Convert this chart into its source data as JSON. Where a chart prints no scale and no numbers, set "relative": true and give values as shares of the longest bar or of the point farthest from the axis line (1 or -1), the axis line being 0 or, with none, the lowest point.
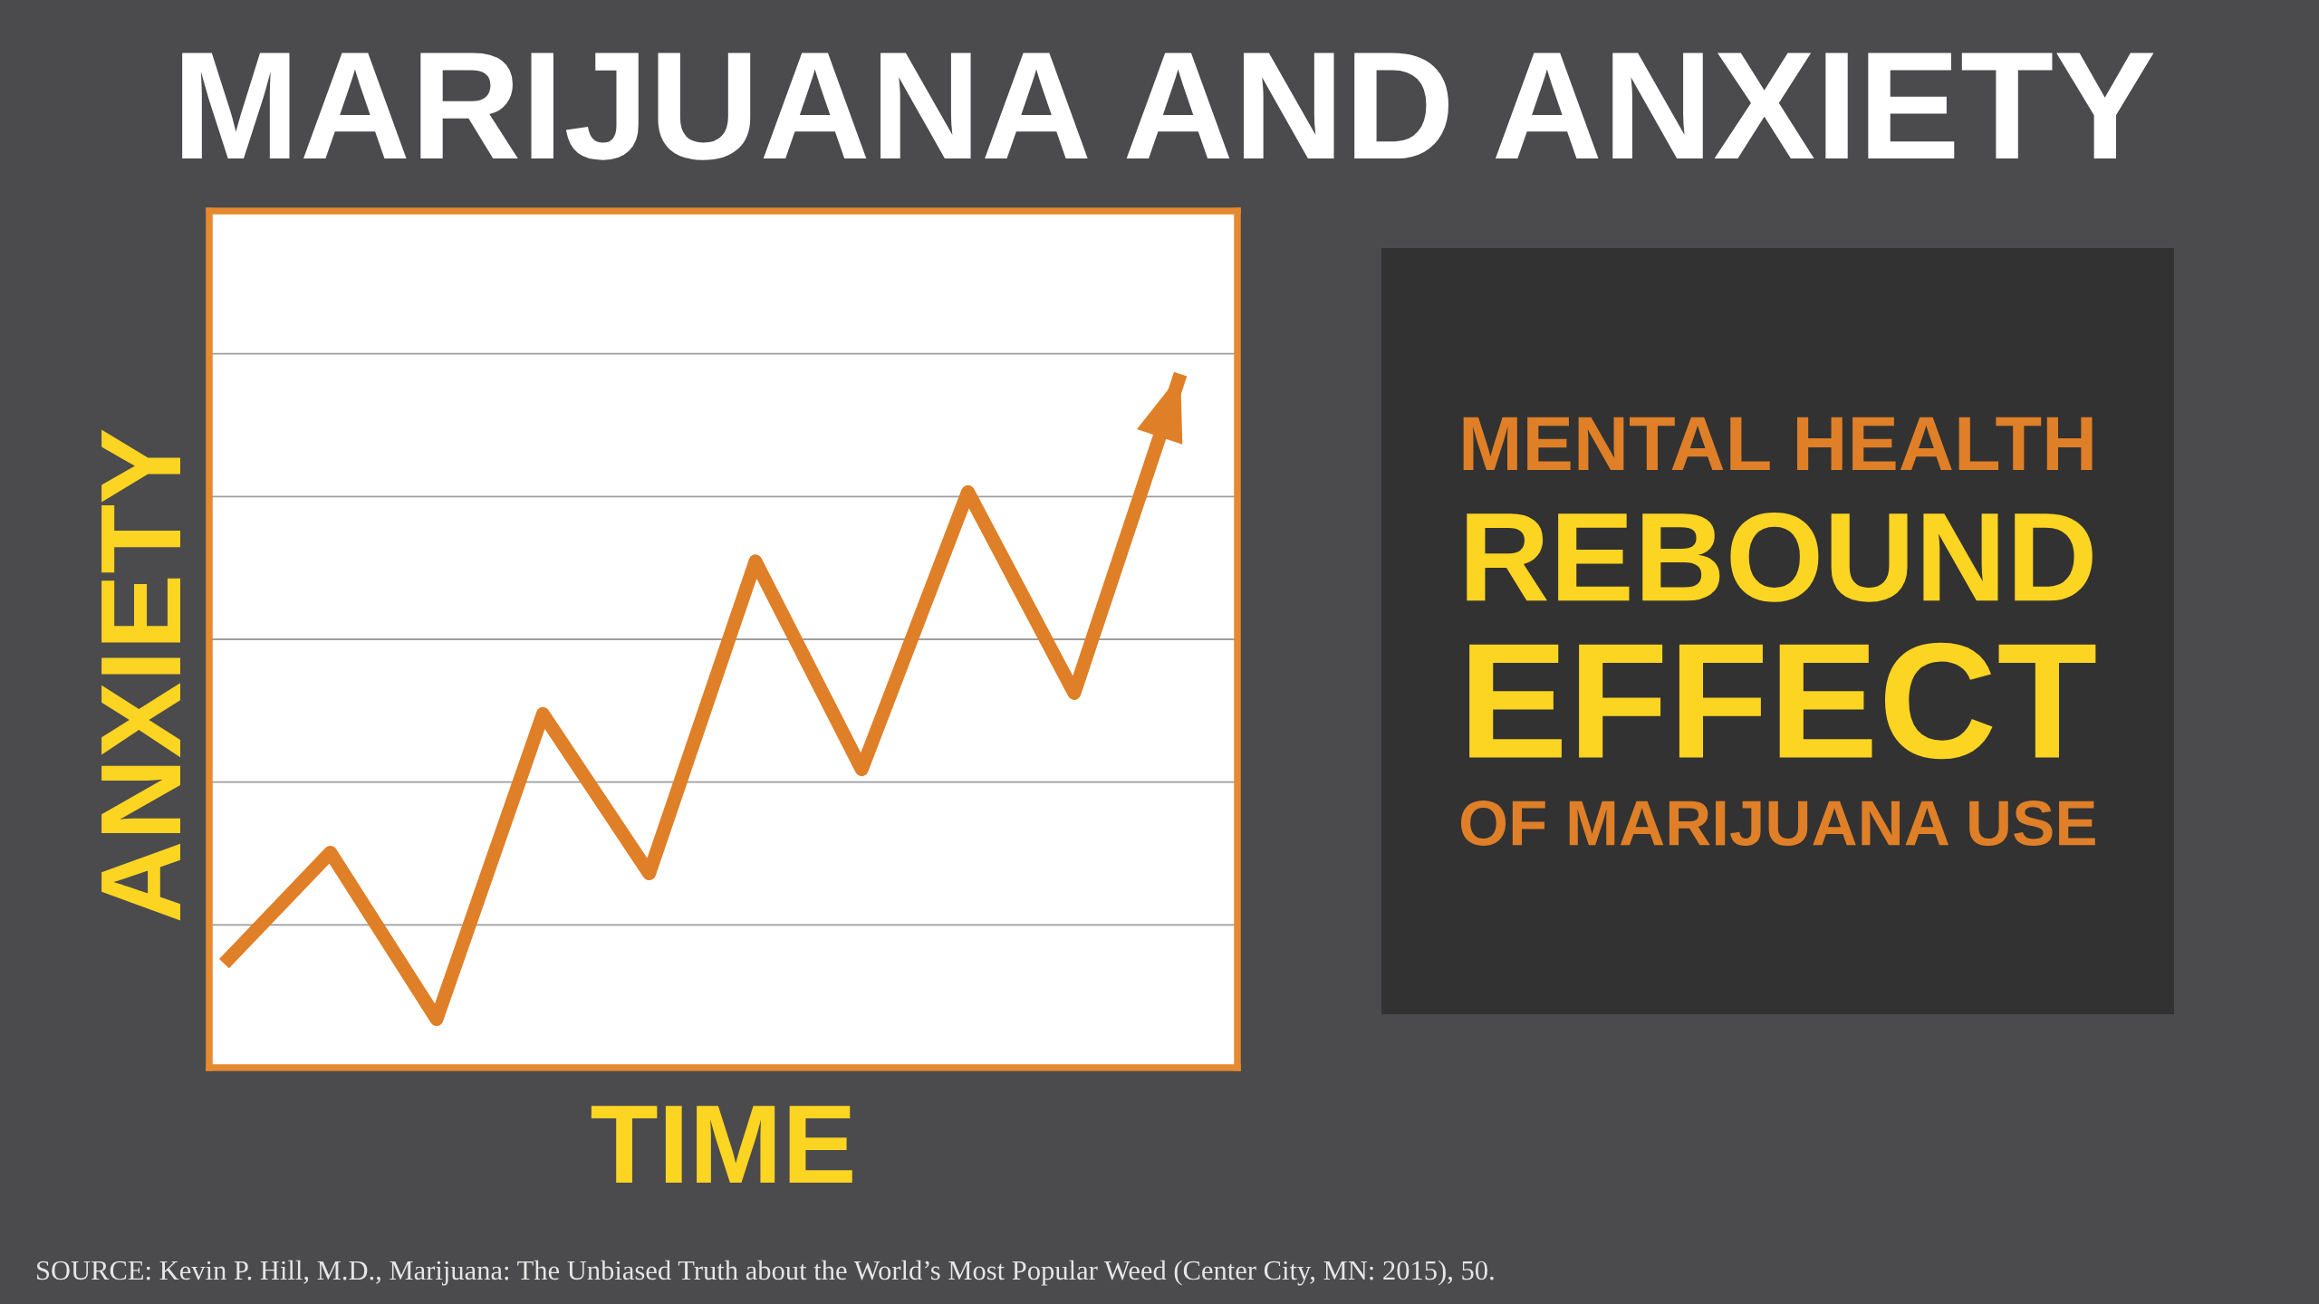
{
  "chart_data": [
    {
      "type": "line",
      "title": "MARIJUANA AND ANXIETY",
      "xlabel": "TIME",
      "ylabel": "ANXIETY",
      "categories": [
        null,
        null,
        null,
        null,
        null,
        null,
        null,
        null,
        null,
        null
      ],
      "relative": true,
      "grid": "y",
      "series": [
        {
          "color": "#df7f27",
          "values": [
            0.15,
            0.31,
            0.07,
            0.51,
            0.28,
            0.73,
            0.43,
            0.83,
            0.54,
            1
          ]
        }
      ],
      "annotations": [
        "SOURCE: Kevin P. Hill, M.D., Marijuana: The Unbiased Truth about the World’s Most Popular Weed (Center City, MN: 2015), 50."
      ]
    },
    {
      "type": "other",
      "annotations": [
        "MENTAL HEALTH",
        "REBOUND",
        "EFFECT",
        "OF MARIJUANA USE"
      ]
    }
  ]
}
